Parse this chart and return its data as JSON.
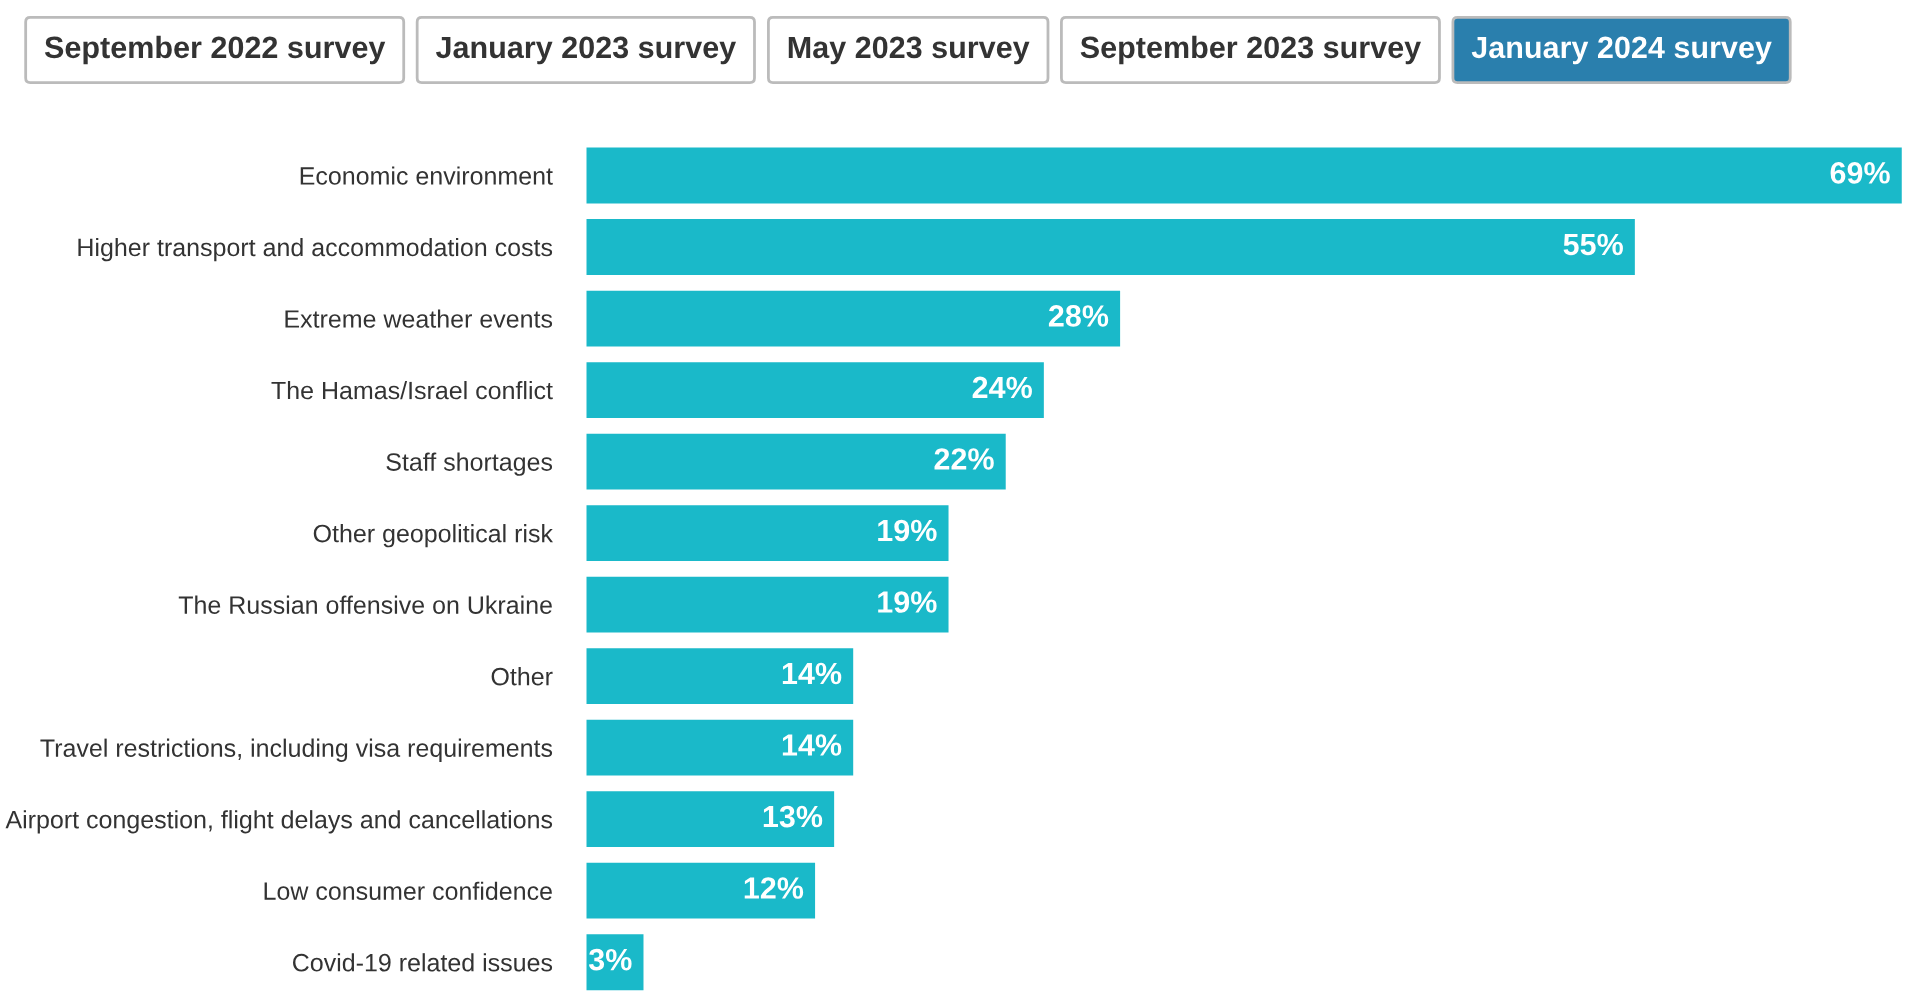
{
  "chart_data": {
    "type": "bar",
    "orientation": "horizontal",
    "grid": false,
    "value_labels": [
      "69%",
      "55%",
      "28%",
      "24%",
      "22%",
      "19%",
      "19%",
      "14%",
      "14%",
      "13%",
      "12%",
      "3%"
    ],
    "legend": false,
    "annotations": [
      "September 2022 survey",
      "January 2023 survey",
      "May 2023 survey",
      "September 2023 survey",
      "January 2024 survey"
    ],
    "categories": [
      "Economic environment",
      "Higher transport and accommodation costs",
      "Extreme weather events",
      "The Hamas/Israel conflict",
      "Staff shortages",
      "Other geopolitical risk",
      "The Russian offensive on Ukraine",
      "Other",
      "Travel restrictions, including visa requirements",
      "Airport congestion, flight delays and cancellations",
      "Low consumer confidence",
      "Covid-19 related issues"
    ],
    "values": [
      69,
      55,
      28,
      24,
      22,
      19,
      19,
      14,
      14,
      13,
      12,
      3
    ],
    "color": "#1ab9c9"
  }
}
